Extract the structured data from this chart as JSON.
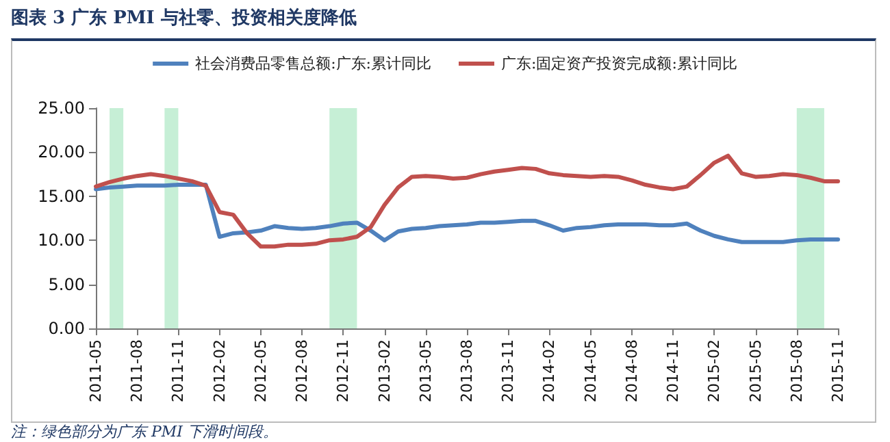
{
  "chart_data": {
    "type": "line",
    "title": "图表 3   广东 PMI 与社零、投资相关度降低",
    "annotations": [
      "注：绿色部分为广东 PMI 下滑时间段。"
    ],
    "x": [
      "2011-05",
      "2011-06",
      "2011-07",
      "2011-08",
      "2011-09",
      "2011-10",
      "2011-11",
      "2011-12",
      "2012-01",
      "2012-02",
      "2012-03",
      "2012-04",
      "2012-05",
      "2012-06",
      "2012-07",
      "2012-08",
      "2012-09",
      "2012-10",
      "2012-11",
      "2012-12",
      "2013-01",
      "2013-02",
      "2013-03",
      "2013-04",
      "2013-05",
      "2013-06",
      "2013-07",
      "2013-08",
      "2013-09",
      "2013-10",
      "2013-11",
      "2013-12",
      "2014-01",
      "2014-02",
      "2014-03",
      "2014-04",
      "2014-05",
      "2014-06",
      "2014-07",
      "2014-08",
      "2014-09",
      "2014-10",
      "2014-11",
      "2014-12",
      "2015-01",
      "2015-02",
      "2015-03",
      "2015-04",
      "2015-05",
      "2015-06",
      "2015-07",
      "2015-08",
      "2015-09",
      "2015-10",
      "2015-11"
    ],
    "series": [
      {
        "name": "社会消费品零售总额:广东:累计同比",
        "color": "#4f81bd",
        "values": [
          15.8,
          16.0,
          16.1,
          16.2,
          16.2,
          16.2,
          16.3,
          16.3,
          16.3,
          10.4,
          10.8,
          10.9,
          11.1,
          11.6,
          11.4,
          11.3,
          11.4,
          11.6,
          11.9,
          12.0,
          11.1,
          10.0,
          11.0,
          11.3,
          11.4,
          11.6,
          11.7,
          11.8,
          12.0,
          12.0,
          12.1,
          12.2,
          12.2,
          11.7,
          11.1,
          11.4,
          11.5,
          11.7,
          11.8,
          11.8,
          11.8,
          11.7,
          11.7,
          11.9,
          11.1,
          10.5,
          10.1,
          9.8,
          9.8,
          9.8,
          9.8,
          10.0,
          10.1,
          10.1,
          10.1
        ]
      },
      {
        "name": "广东:固定资产投资完成额:累计同比",
        "color": "#c0504d",
        "values": [
          16.1,
          16.6,
          17.0,
          17.3,
          17.5,
          17.3,
          17.0,
          16.7,
          16.2,
          13.2,
          12.9,
          10.8,
          9.3,
          9.3,
          9.5,
          9.5,
          9.6,
          10.0,
          10.1,
          10.4,
          11.5,
          14.0,
          16.0,
          17.2,
          17.3,
          17.2,
          17.0,
          17.1,
          17.5,
          17.8,
          18.0,
          18.2,
          18.1,
          17.6,
          17.4,
          17.3,
          17.2,
          17.3,
          17.2,
          16.8,
          16.3,
          16.0,
          15.8,
          16.1,
          17.4,
          18.8,
          19.6,
          17.6,
          17.2,
          17.3,
          17.5,
          17.4,
          17.1,
          16.7,
          16.7
        ]
      }
    ],
    "xlim": [
      "2011-05",
      "2015-11"
    ],
    "xticks": [
      "2011-05",
      "2011-08",
      "2011-11",
      "2012-02",
      "2012-05",
      "2012-08",
      "2012-11",
      "2013-02",
      "2013-05",
      "2013-08",
      "2013-11",
      "2014-02",
      "2014-05",
      "2014-08",
      "2014-11",
      "2015-02",
      "2015-05",
      "2015-08",
      "2015-11"
    ],
    "ylim": [
      0,
      25
    ],
    "yticks": [
      {
        "value": 0,
        "label": "0.00"
      },
      {
        "value": 5,
        "label": "5.00"
      },
      {
        "value": 10,
        "label": "10.00"
      },
      {
        "value": 15,
        "label": "15.00"
      },
      {
        "value": 20,
        "label": "20.00"
      },
      {
        "value": 25,
        "label": "25.00"
      }
    ],
    "bands": [
      {
        "axis": "x",
        "from": "2011-06",
        "to": "2011-07",
        "color": "#c6efd6"
      },
      {
        "axis": "x",
        "from": "2011-10",
        "to": "2011-11",
        "color": "#c6efd6"
      },
      {
        "axis": "x",
        "from": "2012-10",
        "to": "2012-12",
        "color": "#c6efd6"
      },
      {
        "axis": "x",
        "from": "2015-08",
        "to": "2015-10",
        "color": "#c6efd6"
      }
    ],
    "legend": "top",
    "grid": false,
    "marker": "none",
    "line_style": "solid"
  }
}
